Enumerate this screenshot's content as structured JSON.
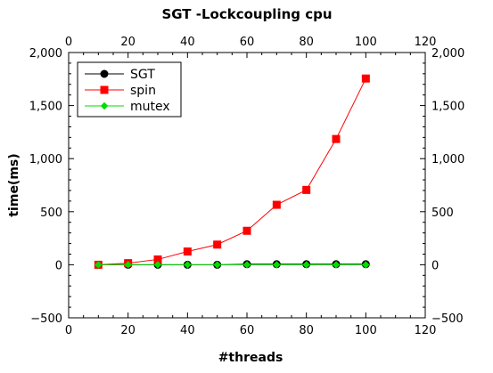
{
  "chart_data": {
    "type": "line",
    "title": "SGT -Lockcoupling cpu",
    "xlabel": "#threads",
    "ylabel": "time(ms)",
    "xlim": [
      0,
      120
    ],
    "ylim": [
      -500,
      2000
    ],
    "x_ticks": [
      0,
      20,
      40,
      60,
      80,
      100,
      120
    ],
    "y_ticks": [
      -500,
      0,
      500,
      1000,
      1500,
      2000
    ],
    "x_tick_labels": [
      "0",
      "20",
      "40",
      "60",
      "80",
      "100",
      "120"
    ],
    "y_tick_labels": [
      "−500",
      "0",
      "500",
      "1,000",
      "1,500",
      "2,000"
    ],
    "mirror_axes": true,
    "grid": false,
    "legend_position": "top-left",
    "x": [
      10,
      20,
      30,
      40,
      50,
      60,
      70,
      80,
      90,
      100
    ],
    "series": [
      {
        "name": "SGT",
        "color": "#000000",
        "marker": "circle",
        "values": [
          0,
          0,
          0,
          0,
          0,
          5,
          5,
          5,
          5,
          5
        ]
      },
      {
        "name": "spin",
        "color": "#ff0000",
        "marker": "square",
        "values": [
          0,
          15,
          50,
          125,
          190,
          320,
          565,
          705,
          1185,
          1755
        ]
      },
      {
        "name": "mutex",
        "color": "#00dd00",
        "marker": "diamond",
        "values": [
          0,
          0,
          0,
          0,
          0,
          0,
          0,
          0,
          0,
          0
        ]
      }
    ]
  }
}
